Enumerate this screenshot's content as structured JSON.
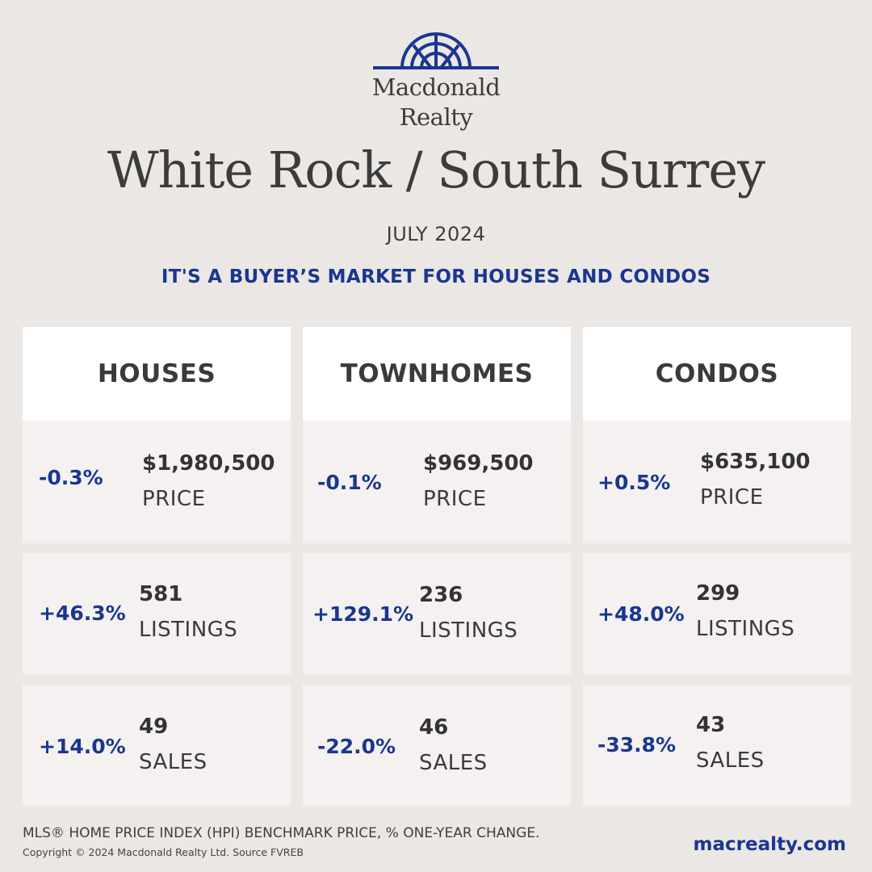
{
  "brand": {
    "line1": "Macdonald",
    "line2": "Realty",
    "accent": "#1a3690"
  },
  "title": "White Rock / South Surrey",
  "date": "JULY 2024",
  "tagline": "IT'S A BUYER’S MARKET FOR HOUSES AND CONDOS",
  "columns": [
    {
      "header": "HOUSES",
      "stats": [
        {
          "change": "-0.3%",
          "value": "$1,980,500",
          "label": "PRICE"
        },
        {
          "change": "+46.3%",
          "value": "581",
          "label": "LISTINGS"
        },
        {
          "change": "+14.0%",
          "value": "49",
          "label": "SALES"
        }
      ]
    },
    {
      "header": "TOWNHOMES",
      "stats": [
        {
          "change": "-0.1%",
          "value": "$969,500",
          "label": "PRICE"
        },
        {
          "change": "+129.1%",
          "value": "236",
          "label": "LISTINGS"
        },
        {
          "change": "-22.0%",
          "value": "46",
          "label": "SALES"
        }
      ]
    },
    {
      "header": "CONDOS",
      "stats": [
        {
          "change": "+0.5%",
          "value": "$635,100",
          "label": "PRICE"
        },
        {
          "change": "+48.0%",
          "value": "299",
          "label": "LISTINGS"
        },
        {
          "change": "-33.8%",
          "value": "43",
          "label": "SALES"
        }
      ]
    }
  ],
  "footer": {
    "note": "MLS® HOME PRICE INDEX (HPI) BENCHMARK PRICE, % ONE-YEAR CHANGE.",
    "copyright": "Copyright © 2024 Macdonald Realty Ltd. Source FVREB",
    "website": "macrealty.com"
  }
}
